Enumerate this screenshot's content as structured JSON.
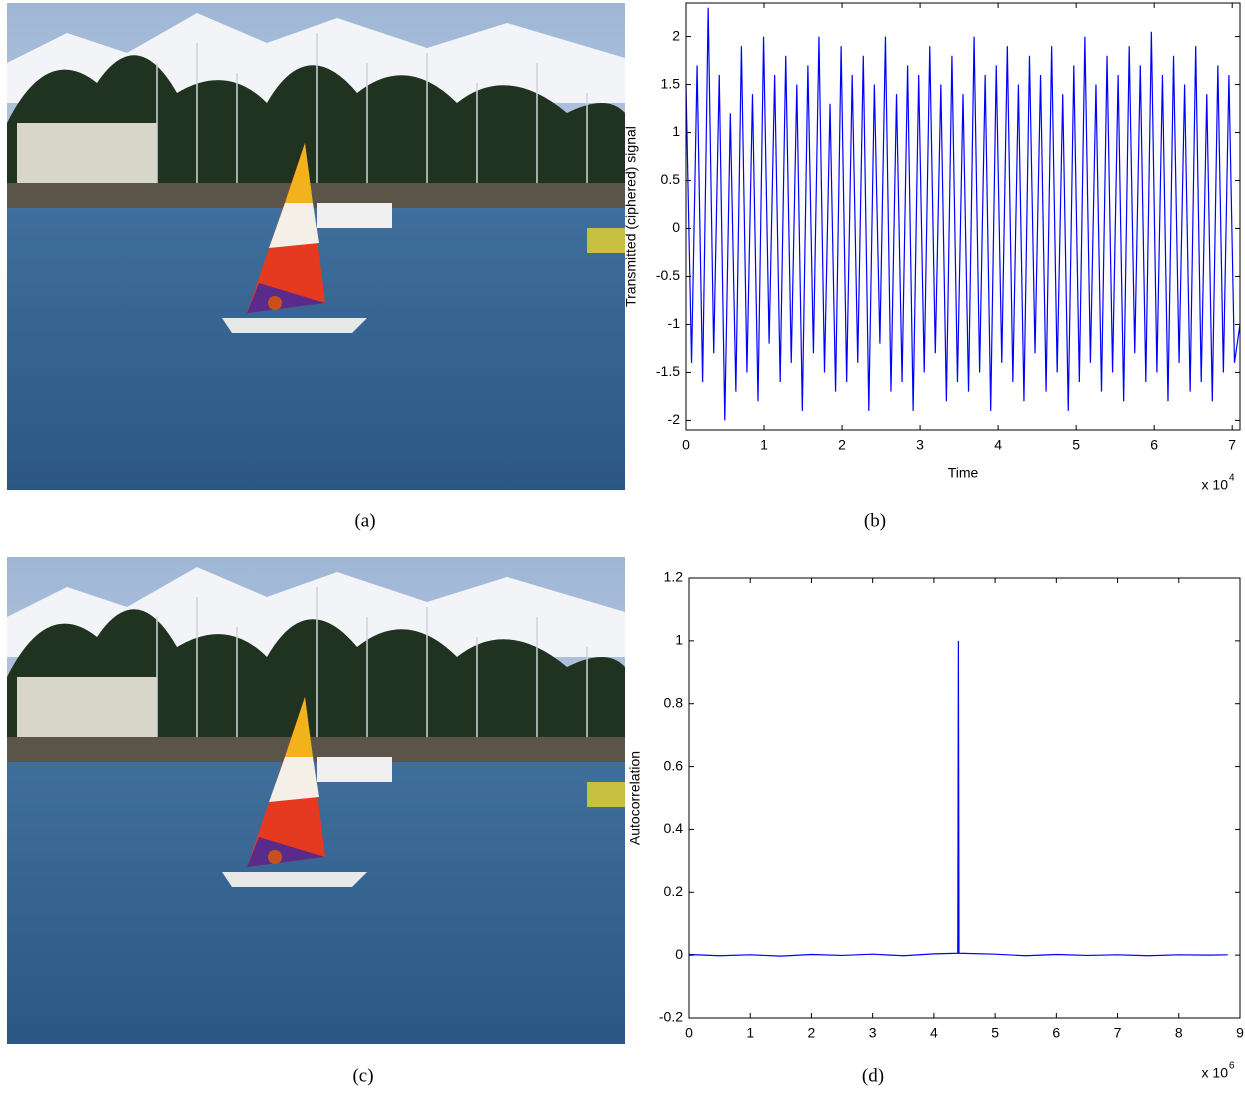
{
  "captions": [
    "(a)",
    "(b)",
    "(c)",
    "(d)"
  ],
  "chart_data": [
    {
      "type": "line",
      "ylabel": "Transmitted (ciphered) signal",
      "xlabel": "Time",
      "x_scale_label": {
        "base": "x 10",
        "exponent": "4"
      },
      "xlim": [
        0,
        71000
      ],
      "ylim": [
        -2.1,
        2.35
      ],
      "xticks": [
        0,
        {
          "value": 10000,
          "label": "1"
        },
        {
          "value": 20000,
          "label": "2"
        },
        {
          "value": 30000,
          "label": "3"
        },
        {
          "value": 40000,
          "label": "4"
        },
        {
          "value": 50000,
          "label": "5"
        },
        {
          "value": 60000,
          "label": "6"
        },
        {
          "value": 70000,
          "label": "7"
        }
      ],
      "yticks": [
        -2,
        -1.5,
        -1,
        -0.5,
        0,
        0.5,
        1,
        1.5,
        2
      ],
      "series": [
        {
          "color": "#0000ff",
          "x": [
            0,
            710,
            1420,
            2130,
            2840,
            3550,
            4260,
            4970,
            5680,
            6390,
            7100,
            7810,
            8520,
            9230,
            9940,
            10650,
            11360,
            12070,
            12780,
            13490,
            14200,
            14910,
            15620,
            16330,
            17040,
            17750,
            18460,
            19170,
            19880,
            20590,
            21300,
            22010,
            22720,
            23430,
            24140,
            24850,
            25560,
            26270,
            26980,
            27690,
            28400,
            29110,
            29820,
            30530,
            31240,
            31950,
            32660,
            33370,
            34080,
            34790,
            35500,
            36210,
            36920,
            37630,
            38340,
            39050,
            39760,
            40470,
            41180,
            41890,
            42600,
            43310,
            44020,
            44730,
            45440,
            46150,
            46860,
            47570,
            48280,
            48990,
            49700,
            50410,
            51120,
            51830,
            52540,
            53250,
            53960,
            54670,
            55380,
            56090,
            56800,
            57510,
            58220,
            58930,
            59640,
            60350,
            61060,
            61770,
            62480,
            63190,
            63900,
            64610,
            65320,
            66030,
            66740,
            67450,
            68160,
            68870,
            69580,
            70290,
            71000
          ],
          "values": [
            1.5,
            -1.4,
            1.7,
            -1.6,
            2.3,
            -1.3,
            1.6,
            -2.0,
            1.2,
            -1.7,
            1.9,
            -1.5,
            1.4,
            -1.8,
            2.0,
            -1.2,
            1.6,
            -1.6,
            1.8,
            -1.4,
            1.5,
            -1.9,
            1.7,
            -1.3,
            2.0,
            -1.5,
            1.3,
            -1.7,
            1.9,
            -1.6,
            1.6,
            -1.4,
            1.8,
            -1.9,
            1.5,
            -1.2,
            2.0,
            -1.7,
            1.4,
            -1.6,
            1.7,
            -1.9,
            1.6,
            -1.5,
            1.9,
            -1.3,
            1.5,
            -1.8,
            1.8,
            -1.6,
            1.4,
            -1.7,
            2.0,
            -1.5,
            1.6,
            -1.9,
            1.7,
            -1.4,
            1.9,
            -1.6,
            1.5,
            -1.8,
            1.8,
            -1.3,
            1.6,
            -1.7,
            1.9,
            -1.5,
            1.4,
            -1.9,
            1.7,
            -1.6,
            2.0,
            -1.4,
            1.5,
            -1.7,
            1.8,
            -1.5,
            1.6,
            -1.8,
            1.9,
            -1.3,
            1.7,
            -1.6,
            2.05,
            -1.5,
            1.6,
            -1.8,
            1.8,
            -1.4,
            1.5,
            -1.7,
            1.9,
            -1.6,
            1.4,
            -1.8,
            1.7,
            -1.5,
            1.6,
            -1.4,
            -1.0
          ]
        }
      ]
    },
    {
      "type": "line",
      "ylabel": "Autocorrelation",
      "x_scale_label": {
        "base": "x 10",
        "exponent": "6"
      },
      "xlim": [
        0,
        9000000
      ],
      "ylim": [
        -0.2,
        1.2
      ],
      "xticks": [
        0,
        {
          "value": 1000000,
          "label": "1"
        },
        {
          "value": 2000000,
          "label": "2"
        },
        {
          "value": 3000000,
          "label": "3"
        },
        {
          "value": 4000000,
          "label": "4"
        },
        {
          "value": 5000000,
          "label": "5"
        },
        {
          "value": 6000000,
          "label": "6"
        },
        {
          "value": 7000000,
          "label": "7"
        },
        {
          "value": 8000000,
          "label": "8"
        },
        {
          "value": 9000000,
          "label": "9"
        }
      ],
      "yticks": [
        -0.2,
        0,
        0.2,
        0.4,
        0.6,
        0.8,
        1,
        1.2
      ],
      "series": [
        {
          "color": "#0000ff",
          "x": [
            0,
            500000,
            1000000,
            1500000,
            2000000,
            2500000,
            3000000,
            3500000,
            4000000,
            4390000,
            4400000,
            4410000,
            5000000,
            5500000,
            6000000,
            6500000,
            7000000,
            7500000,
            8000000,
            8500000,
            8800000
          ],
          "values": [
            0.002,
            -0.002,
            0.001,
            -0.003,
            0.002,
            -0.001,
            0.003,
            -0.002,
            0.004,
            0.006,
            1,
            0.006,
            0.003,
            -0.002,
            0.002,
            -0.001,
            0.001,
            -0.002,
            0.001,
            0,
            0.001
          ]
        }
      ]
    }
  ]
}
